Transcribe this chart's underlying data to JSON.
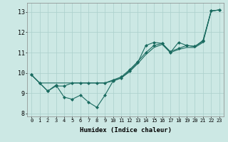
{
  "xlabel": "Humidex (Indice chaleur)",
  "bg_color": "#cce8e4",
  "grid_color": "#aacfcb",
  "line_color": "#1a6b60",
  "xlim": [
    -0.5,
    23.5
  ],
  "ylim": [
    7.85,
    13.45
  ],
  "yticks": [
    8,
    9,
    10,
    11,
    12,
    13
  ],
  "xticks": [
    0,
    1,
    2,
    3,
    4,
    5,
    6,
    7,
    8,
    9,
    10,
    11,
    12,
    13,
    14,
    15,
    16,
    17,
    18,
    19,
    20,
    21,
    22,
    23
  ],
  "series_jagged": [
    9.9,
    9.5,
    9.1,
    9.4,
    8.8,
    8.7,
    8.9,
    8.55,
    8.3,
    8.9,
    9.6,
    9.75,
    10.1,
    10.5,
    11.35,
    11.5,
    11.45,
    11.0,
    11.5,
    11.35,
    11.3,
    11.6,
    13.05,
    13.1
  ],
  "series_mid": [
    9.9,
    9.5,
    9.1,
    9.35,
    9.35,
    9.5,
    9.5,
    9.5,
    9.5,
    9.5,
    9.65,
    9.8,
    10.15,
    10.55,
    11.0,
    11.35,
    11.45,
    11.05,
    11.2,
    11.35,
    11.3,
    11.55,
    13.05,
    13.1
  ],
  "series_straight": [
    9.9,
    9.5,
    9.5,
    9.5,
    9.5,
    9.5,
    9.5,
    9.5,
    9.5,
    9.5,
    9.6,
    9.75,
    10.05,
    10.45,
    10.9,
    11.25,
    11.4,
    11.0,
    11.15,
    11.25,
    11.25,
    11.5,
    13.05,
    13.1
  ]
}
